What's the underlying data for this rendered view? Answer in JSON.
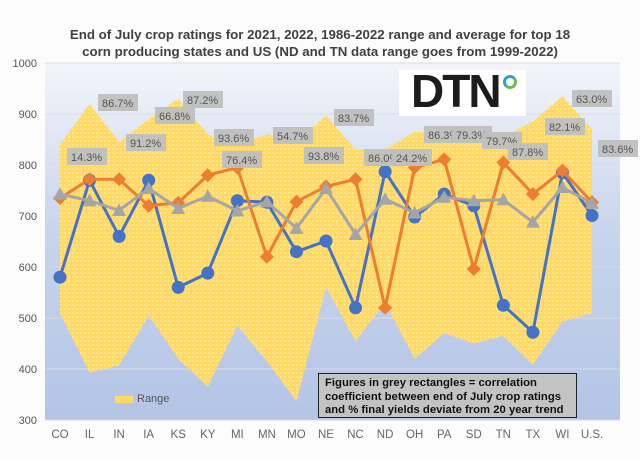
{
  "chart_data": {
    "type": "line",
    "title": "End of July crop ratings for 2021, 2022, 1986-2022 range and average for top 18 corn producing states and US (ND and TN data range goes from 1999-2022)",
    "xlabel": "",
    "ylabel": "",
    "ylim": [
      300,
      1000
    ],
    "yticks": [
      300,
      400,
      500,
      600,
      700,
      800,
      900,
      1000
    ],
    "grid": true,
    "categories": [
      "CO",
      "IL",
      "IN",
      "IA",
      "KS",
      "KY",
      "MI",
      "MN",
      "MO",
      "NE",
      "NC",
      "ND",
      "OH",
      "PA",
      "SD",
      "TN",
      "TX",
      "WI",
      "U.S."
    ],
    "range": {
      "name": "Range",
      "max": [
        840,
        920,
        845,
        890,
        930,
        860,
        840,
        860,
        845,
        897,
        830,
        830,
        865,
        865,
        865,
        855,
        885,
        935,
        870
      ],
      "min": [
        510,
        393,
        407,
        505,
        420,
        365,
        485,
        415,
        337,
        560,
        455,
        530,
        420,
        470,
        450,
        465,
        408,
        493,
        510
      ]
    },
    "series": [
      {
        "name": "Blue series (circle markers)",
        "color": "#4472c4",
        "marker": "circle",
        "values": [
          580,
          770,
          660,
          770,
          560,
          588,
          730,
          727,
          630,
          651,
          520,
          787,
          698,
          743,
          720,
          525,
          472,
          785,
          701
        ]
      },
      {
        "name": "Orange series (diamond markers)",
        "color": "#ed7d31",
        "marker": "diamond",
        "values": [
          735,
          772,
          772,
          720,
          726,
          780,
          795,
          620,
          728,
          758,
          772,
          520,
          795,
          811,
          596,
          805,
          743,
          789,
          727
        ]
      },
      {
        "name": "Grey series (triangle markers)",
        "color": "#a5a5a5",
        "marker": "triangle",
        "values": [
          743,
          730,
          711,
          754,
          715,
          739,
          710,
          728,
          676,
          754,
          664,
          733,
          706,
          737,
          730,
          732,
          688,
          756,
          725
        ]
      }
    ],
    "correlation_labels": [
      "14.3%",
      "86.7%",
      "91.2%",
      "66.8%",
      "87.2%",
      "93.6%",
      "76.4%",
      "54.7%",
      "93.8%",
      "83.7%",
      "86.0%",
      "24.2%",
      "86.3%",
      "79.3%",
      "79.7%",
      "87.8%",
      "82.1%",
      "63.0%",
      "83.6%"
    ],
    "legend": [
      {
        "label": "Range",
        "color": "#ffd966"
      }
    ],
    "legend_position": "bottom-left",
    "annotation": "Figures in grey rectangles = correlation coefficient between end of July crop ratings and % final yields deviate from 20 year trend"
  },
  "title_lines": [
    "End of July crop ratings for 2021, 2022, 1986-2022 range and average for top 18",
    "corn producing states and US (ND and TN data range goes from 1999-2022)"
  ],
  "logo": {
    "text": "DTN",
    "ring_colors": [
      "#2a9fd8",
      "#6cbd45"
    ]
  },
  "note_lines": [
    "Figures in grey rectangles = correlation",
    "coefficient between end of July crop ratings",
    "and % final yields deviate from 20 year trend"
  ],
  "legend_label": "Range"
}
